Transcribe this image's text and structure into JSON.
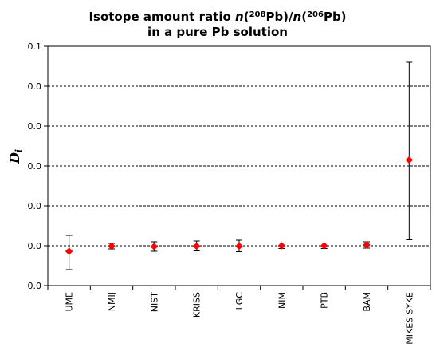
{
  "chart_data": {
    "type": "scatter",
    "title": {
      "line1_pre": "Isotope amount ratio ",
      "line1_n1": "n",
      "line1_open1": "(",
      "line1_sup1": "208",
      "line1_el1": "Pb)/",
      "line1_n2": "n",
      "line1_open2": "(",
      "line1_sup2": "206",
      "line1_el2": "Pb)",
      "line2": "in a pure Pb solution"
    },
    "ylabel": {
      "main": "D",
      "sub": "i"
    },
    "xlabel": "",
    "y_ticks": [
      "0.0",
      "0.0",
      "0.0",
      "0.0",
      "0.0",
      "0.0",
      "0.1"
    ],
    "ylim": [
      0,
      6
    ],
    "grid": "horizontal-dashed",
    "categories": [
      "UME",
      "NMIJ",
      "NIST",
      "KRISS",
      "LGC",
      "NIM",
      "PTB",
      "BAM",
      "MIKES-SYKE"
    ],
    "values": [
      0.86,
      0.99,
      0.98,
      0.99,
      0.99,
      1.0,
      1.0,
      1.02,
      3.15
    ],
    "error_low": [
      0.46,
      0.07,
      0.12,
      0.12,
      0.14,
      0.07,
      0.07,
      0.08,
      2.0
    ],
    "error_high": [
      0.4,
      0.07,
      0.12,
      0.13,
      0.15,
      0.07,
      0.07,
      0.08,
      2.45
    ],
    "marker_color": "#ff0000"
  }
}
